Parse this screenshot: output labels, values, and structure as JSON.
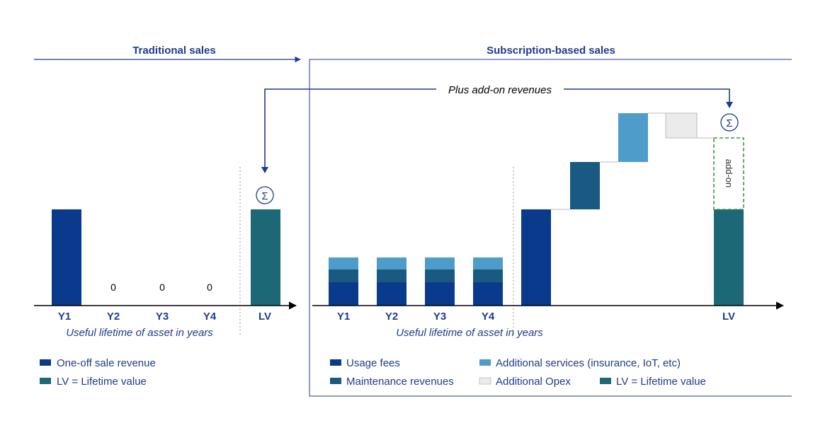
{
  "colors": {
    "navy": "#0A3A8C",
    "teal": "#1C6876",
    "steel": "#1A5A82",
    "light_blue": "#4E9CC9",
    "opex_grey": "#EBEBEB",
    "addon_green": "#3E9A3E",
    "line": "#1F3C8C"
  },
  "traditional": {
    "heading": "Traditional sales",
    "ticks": [
      "Y1",
      "Y2",
      "Y3",
      "Y4",
      "LV"
    ],
    "zero_labels": [
      "0",
      "0",
      "0"
    ],
    "axis_caption": "Useful lifetime of asset in years",
    "sum_symbol": "Σ",
    "legend": [
      {
        "label": "One-off sale revenue",
        "color_key": "navy"
      },
      {
        "label": "LV = Lifetime value",
        "color_key": "teal"
      }
    ]
  },
  "subscription": {
    "heading": "Subscription-based sales",
    "ticks": [
      "Y1",
      "Y2",
      "Y3",
      "Y4"
    ],
    "lv_tick": "LV",
    "axis_caption": "Useful lifetime of asset in years",
    "arrow_label": "Plus add-on revenues",
    "addon_label": "add-on",
    "sum_symbol": "Σ",
    "legend": [
      {
        "label": "Usage fees",
        "color_key": "navy"
      },
      {
        "label": "Additional services (insurance, IoT, etc)",
        "color_key": "light_blue"
      },
      {
        "label": "Maintenance revenues",
        "color_key": "steel"
      },
      {
        "label": "Additional Opex",
        "color_key": "opex_grey"
      },
      {
        "label": "LV = Lifetime value",
        "color_key": "teal"
      }
    ]
  }
}
